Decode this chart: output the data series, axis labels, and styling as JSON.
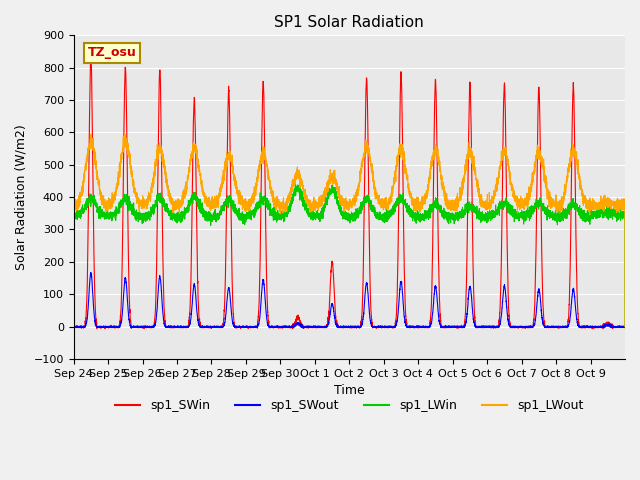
{
  "title": "SP1 Solar Radiation",
  "xlabel": "Time",
  "ylabel": "Solar Radiation (W/m2)",
  "ylim": [
    -100,
    900
  ],
  "annotation_text": "TZ_osu",
  "series_colors": {
    "sp1_SWin": "#ff0000",
    "sp1_SWout": "#0000ff",
    "sp1_LWin": "#00cc00",
    "sp1_LWout": "#ffa500"
  },
  "series_labels": [
    "sp1_SWin",
    "sp1_SWout",
    "sp1_LWin",
    "sp1_LWout"
  ],
  "bg_color": "#e8e8e8",
  "fig_color": "#f0f0f0",
  "tick_labels": [
    "Sep 24",
    "Sep 25",
    "Sep 26",
    "Sep 27",
    "Sep 28",
    "Sep 29",
    "Sep 30",
    "Oct 1",
    "Oct 2",
    "Oct 3",
    "Oct 4",
    "Oct 5",
    "Oct 6",
    "Oct 7",
    "Oct 8",
    "Oct 9"
  ],
  "num_days": 16,
  "yticks": [
    -100,
    0,
    100,
    200,
    300,
    400,
    500,
    600,
    700,
    800,
    900
  ],
  "sw_in_peaks": [
    840,
    800,
    795,
    705,
    730,
    755,
    30,
    200,
    770,
    780,
    760,
    755,
    750,
    740,
    745,
    10
  ],
  "sw_out_peaks": [
    165,
    150,
    155,
    130,
    120,
    145,
    10,
    70,
    135,
    140,
    125,
    125,
    125,
    115,
    115,
    5
  ],
  "lw_in_base": 340,
  "lw_out_base": 375,
  "lw_in_peak_add": [
    55,
    55,
    60,
    65,
    55,
    55,
    85,
    85,
    55,
    55,
    40,
    35,
    35,
    40,
    40,
    10
  ],
  "lw_out_peak_add": [
    200,
    195,
    175,
    175,
    150,
    155,
    100,
    90,
    175,
    175,
    170,
    165,
    165,
    160,
    175,
    10
  ]
}
